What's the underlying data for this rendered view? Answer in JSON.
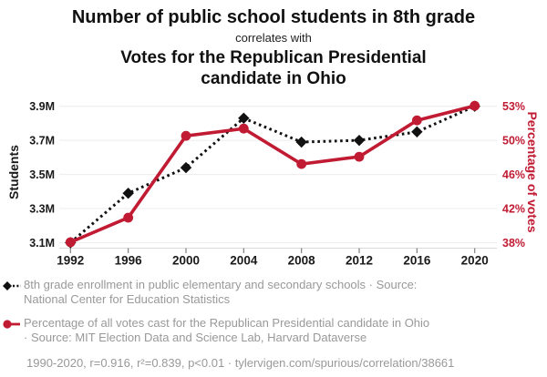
{
  "header": {
    "title_black": "Number of public school students in 8th grade",
    "correlates_with": "correlates with",
    "title_red_lines": [
      "Votes for the Republican Presidential",
      "candidate in Ohio"
    ]
  },
  "chart_data": {
    "type": "line",
    "x": [
      1992,
      1996,
      2000,
      2004,
      2008,
      2012,
      2016,
      2020
    ],
    "x_tick_labels": [
      "1992",
      "1996",
      "2000",
      "2004",
      "2008",
      "2012",
      "2016",
      "2020"
    ],
    "series": [
      {
        "name": "8th grade enrollment in public elementary and secondary schools",
        "axis": "left",
        "style": "dotted",
        "marker": "diamond",
        "color": "#111111",
        "values": [
          3.1,
          3.39,
          3.54,
          3.83,
          3.69,
          3.7,
          3.75,
          3.9
        ],
        "unit": "millions of students"
      },
      {
        "name": "Percentage of all votes cast for the Republican Presidential candidate in Ohio",
        "axis": "right",
        "style": "solid",
        "marker": "circle",
        "color": "#c11b33",
        "values": [
          38.3,
          41.0,
          50.0,
          50.8,
          46.9,
          47.7,
          51.7,
          53.3
        ],
        "unit": "%"
      }
    ],
    "left_axis": {
      "label": "Students",
      "min": 3.1,
      "max": 3.9,
      "tick_labels": [
        "3.1M",
        "3.3M",
        "3.5M",
        "3.7M",
        "3.9M"
      ]
    },
    "right_axis": {
      "label": "Percentage of votes",
      "min": 38.25,
      "max": 53.25,
      "tick_labels": [
        "38%",
        "42%",
        "46%",
        "50%",
        "53%"
      ]
    },
    "grid": "horizontal",
    "legend_position": "below"
  },
  "legend": {
    "items": [
      {
        "lines": [
          "8th grade enrollment in public elementary and secondary schools · Source:",
          "National Center for Education Statistics"
        ]
      },
      {
        "lines": [
          "Percentage of all votes cast for the Republican Presidential candidate in Ohio",
          "· Source: MIT Election Data and Science Lab, Harvard Dataverse"
        ]
      }
    ],
    "stats_line": "1990-2020, r=0.916, r²=0.839, p<0.01 · tylervigen.com/spurious/correlation/38661"
  },
  "colors": {
    "accent_red": "#c11b33",
    "series_black": "#111111",
    "text_gray": "#999999",
    "grid_line": "#ececec",
    "axis_line": "#d9d9d9",
    "tick_mark": "#808080"
  }
}
